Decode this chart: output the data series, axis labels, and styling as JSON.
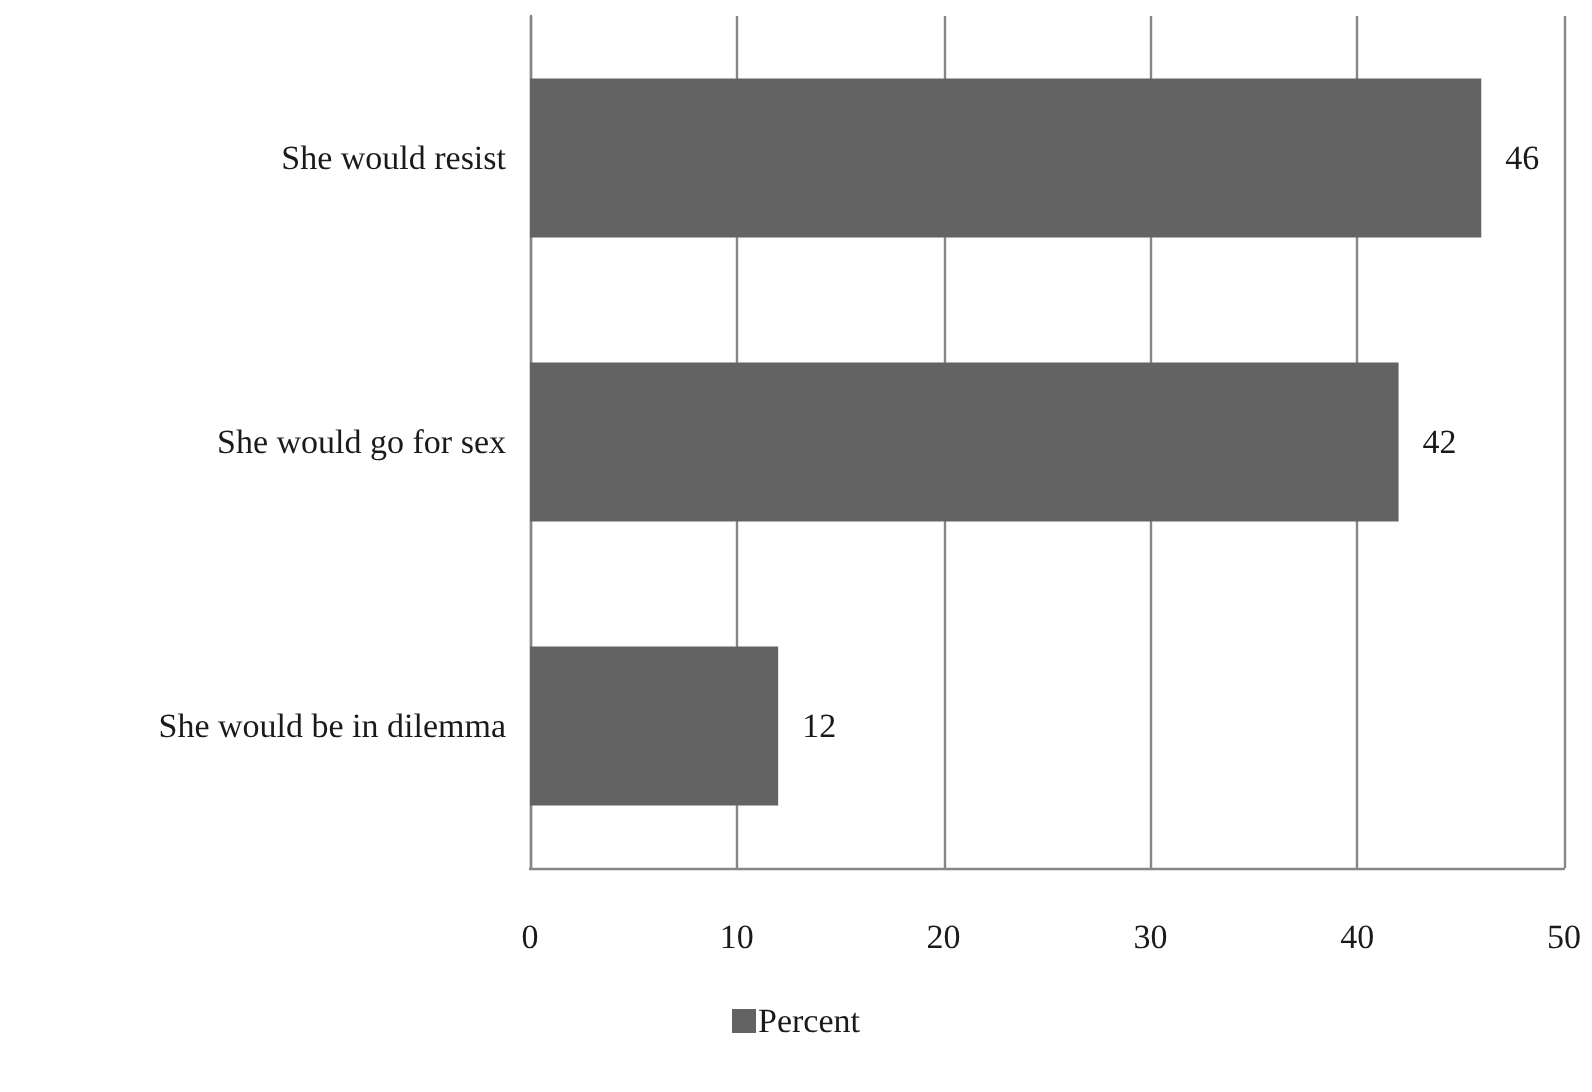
{
  "chart_data": {
    "type": "bar",
    "orientation": "horizontal",
    "categories": [
      "She would resist",
      "She would go for sex",
      "She would be in dilemma"
    ],
    "series": [
      {
        "name": "Percent",
        "color": "#636363",
        "values": [
          46,
          42,
          12
        ]
      }
    ],
    "xlim": [
      0,
      50
    ],
    "xticks": [
      0,
      10,
      20,
      30,
      40,
      50
    ],
    "grid": "x",
    "legend": "bottom",
    "data_labels": true
  }
}
